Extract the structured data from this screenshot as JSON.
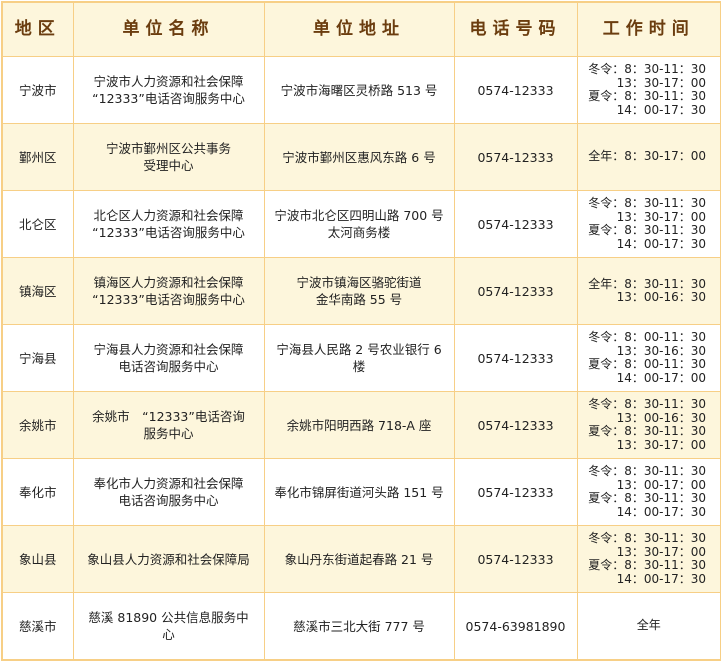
{
  "table": {
    "headers": [
      "地区",
      "单位名称",
      "单位地址",
      "电话号码",
      "工作时间"
    ],
    "rows": [
      {
        "region": "宁波市",
        "name": [
          "宁波市人力资源和社会保障",
          "“12333”电话咨询服务中心"
        ],
        "address": [
          "宁波市海曙区灵桥路 513 号"
        ],
        "phone": "0574-12333",
        "hours": [
          "冬令：8：30-11：30",
          "13：30-17：00",
          "夏令：8：30-11：30",
          "14：00-17：30"
        ]
      },
      {
        "region": "鄞州区",
        "name": [
          "宁波市鄞州区公共事务",
          "受理中心"
        ],
        "address": [
          "宁波市鄞州区惠风东路 6 号"
        ],
        "phone": "0574-12333",
        "hours": [
          "全年：8：30-17：00"
        ]
      },
      {
        "region": "北仑区",
        "name": [
          "北仑区人力资源和社会保障",
          "“12333”电话咨询服务中心"
        ],
        "address": [
          "宁波市北仑区四明山路 700 号",
          "太河商务楼"
        ],
        "phone": "0574-12333",
        "hours": [
          "冬令：8：30-11：30",
          "13：30-17：00",
          "夏令：8：30-11：30",
          "14：00-17：30"
        ]
      },
      {
        "region": "镇海区",
        "name": [
          "镇海区人力资源和社会保障",
          "“12333”电话咨询服务中心"
        ],
        "address": [
          "宁波市镇海区骆驼街道",
          "金华南路 55 号"
        ],
        "phone": "0574-12333",
        "hours": [
          "全年：8：30-11：30",
          "13：00-16：30"
        ]
      },
      {
        "region": "宁海县",
        "name": [
          "宁海县人力资源和社会保障",
          "电话咨询服务中心"
        ],
        "address": [
          "宁海县人民路 2 号农业银行 6",
          "楼"
        ],
        "phone": "0574-12333",
        "hours": [
          "冬令：8：00-11：30",
          "13：30-16：30",
          "夏令：8：00-11：30",
          "14：00-17：00"
        ]
      },
      {
        "region": "余姚市",
        "name": [
          "余姚市　“12333”电话咨询",
          "服务中心"
        ],
        "address": [
          "余姚市阳明西路 718-A 座"
        ],
        "phone": "0574-12333",
        "hours": [
          "冬令：8：30-11：30",
          "13：00-16：30",
          "夏令：8：30-11：30",
          "13：30-17：00"
        ]
      },
      {
        "region": "奉化市",
        "name": [
          "奉化市人力资源和社会保障",
          "电话咨询服务中心"
        ],
        "address": [
          "奉化市锦屏街道河头路 151 号"
        ],
        "phone": "0574-12333",
        "hours": [
          "冬令：8：30-11：30",
          "13：00-17：00",
          "夏令：8：30-11：30",
          "14：00-17：30"
        ]
      },
      {
        "region": "象山县",
        "name": [
          "象山县人力资源和社会保障局"
        ],
        "address": [
          "象山丹东街道起春路 21 号"
        ],
        "phone": "0574-12333",
        "hours": [
          "冬令：8：30-11：30",
          "13：30-17：00",
          "夏令：8：30-11：30",
          "14：00-17：30"
        ]
      },
      {
        "region": "慈溪市",
        "name": [
          "慈溪 81890 公共信息服务中",
          "心"
        ],
        "address": [
          "慈溪市三北大街 777 号"
        ],
        "phone": "0574-63981890",
        "hours": [
          "全年"
        ]
      }
    ]
  },
  "colors": {
    "border": "#f7cf86",
    "header_bg": "#fdf6dc",
    "header_text": "#6b3d0f",
    "alt_row_bg": "#fdf6dc"
  }
}
